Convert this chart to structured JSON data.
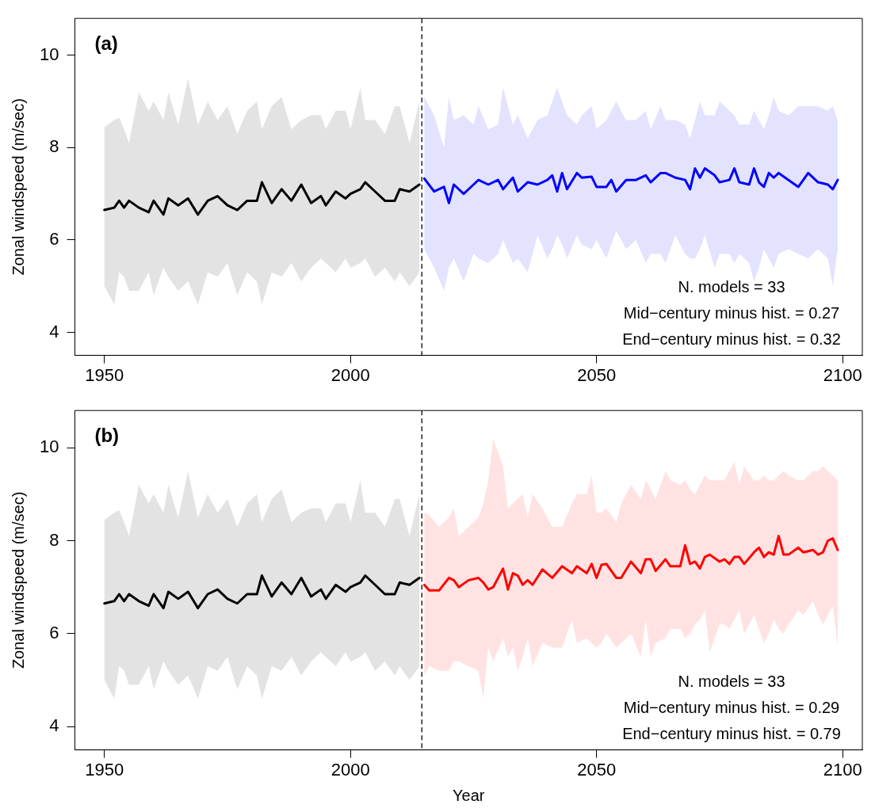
{
  "chart_data": [
    {
      "type": "line",
      "title": "(a)",
      "ylabel": "Zonal windspeed (m/sec)",
      "xlim": [
        1944,
        2104
      ],
      "ylim": [
        3.5,
        10.8
      ],
      "xticks": [
        1950,
        2000,
        2050,
        2100
      ],
      "yticks": [
        4,
        6,
        8,
        10
      ],
      "grid": false,
      "legend": false,
      "marker": "none",
      "line_style": "solid",
      "ref_lines": [
        {
          "axis": "x",
          "value": 2014.5,
          "color": "#000000",
          "line_style": "dashed"
        }
      ],
      "annotations": [
        "N. models = 33",
        "Mid−century minus hist. = 0.27",
        "End−century minus hist. = 0.32"
      ],
      "series": [
        {
          "color": "#000000",
          "x": [
            1950,
            1952,
            1953,
            1954,
            1955,
            1957,
            1959,
            1960,
            1962,
            1963,
            1965,
            1967,
            1969,
            1971,
            1973,
            1975,
            1977,
            1979,
            1981,
            1982,
            1984,
            1986,
            1988,
            1990,
            1992,
            1994,
            1995,
            1997,
            1999,
            2000,
            2002,
            2003,
            2005,
            2007,
            2009,
            2010,
            2012,
            2014
          ],
          "values": [
            6.65,
            6.7,
            6.85,
            6.7,
            6.85,
            6.7,
            6.6,
            6.85,
            6.55,
            6.9,
            6.75,
            6.9,
            6.55,
            6.85,
            6.95,
            6.75,
            6.65,
            6.85,
            6.85,
            7.25,
            6.8,
            7.1,
            6.85,
            7.2,
            6.8,
            6.95,
            6.75,
            7.05,
            6.9,
            7.0,
            7.1,
            7.25,
            7.05,
            6.85,
            6.85,
            7.1,
            7.05,
            7.2
          ],
          "upper": [
            8.45,
            8.6,
            8.65,
            8.4,
            8.1,
            9.2,
            8.8,
            9.0,
            8.6,
            9.2,
            8.5,
            9.5,
            8.5,
            9.0,
            8.6,
            8.9,
            8.3,
            8.8,
            9.0,
            8.4,
            8.9,
            9.1,
            8.4,
            8.6,
            8.7,
            8.7,
            8.4,
            8.8,
            8.8,
            8.4,
            9.3,
            8.6,
            8.6,
            8.3,
            8.9,
            8.9,
            8.1,
            9.0
          ],
          "lower": [
            5.0,
            4.6,
            5.3,
            5.2,
            4.9,
            4.9,
            5.3,
            4.8,
            5.4,
            5.2,
            4.9,
            5.1,
            4.6,
            5.3,
            5.2,
            5.5,
            4.8,
            5.3,
            5.1,
            4.6,
            5.3,
            5.2,
            5.5,
            5.1,
            5.4,
            5.6,
            5.5,
            5.3,
            5.6,
            5.4,
            5.5,
            5.6,
            5.2,
            5.4,
            5.1,
            5.3,
            5.0,
            5.3
          ]
        },
        {
          "color": "#0000ff",
          "x": [
            2015,
            2017,
            2019,
            2020,
            2021,
            2023,
            2025,
            2026,
            2028,
            2030,
            2031,
            2033,
            2034,
            2036,
            2038,
            2040,
            2041,
            2042,
            2043,
            2044,
            2046,
            2047,
            2049,
            2050,
            2052,
            2053,
            2054,
            2056,
            2058,
            2060,
            2061,
            2063,
            2064,
            2066,
            2068,
            2069,
            2070,
            2071,
            2072,
            2074,
            2075,
            2077,
            2078,
            2079,
            2081,
            2082,
            2083,
            2084,
            2085,
            2086,
            2087,
            2089,
            2091,
            2093,
            2095,
            2097,
            2098,
            2099
          ],
          "values": [
            7.33,
            7.05,
            7.15,
            6.8,
            7.2,
            7.0,
            7.2,
            7.3,
            7.2,
            7.3,
            7.1,
            7.35,
            7.05,
            7.25,
            7.2,
            7.3,
            7.4,
            7.05,
            7.45,
            7.1,
            7.45,
            7.35,
            7.37,
            7.15,
            7.15,
            7.3,
            7.05,
            7.3,
            7.3,
            7.4,
            7.25,
            7.45,
            7.45,
            7.35,
            7.3,
            7.1,
            7.55,
            7.35,
            7.55,
            7.4,
            7.25,
            7.3,
            7.55,
            7.25,
            7.2,
            7.55,
            7.25,
            7.15,
            7.45,
            7.35,
            7.45,
            7.3,
            7.15,
            7.45,
            7.25,
            7.2,
            7.1,
            7.3
          ],
          "upper": [
            9.1,
            8.7,
            8.0,
            9.1,
            8.6,
            8.7,
            8.5,
            8.9,
            8.4,
            8.5,
            9.3,
            8.5,
            8.7,
            8.2,
            8.6,
            8.7,
            9.0,
            9.3,
            9.0,
            8.7,
            8.5,
            8.7,
            8.9,
            8.4,
            8.6,
            8.8,
            9.0,
            8.6,
            8.6,
            8.8,
            8.4,
            8.9,
            8.6,
            8.6,
            8.5,
            8.2,
            8.6,
            9.0,
            8.7,
            8.7,
            9.0,
            8.8,
            8.7,
            8.5,
            8.5,
            8.8,
            8.6,
            8.4,
            8.7,
            9.1,
            8.8,
            8.7,
            8.9,
            8.9,
            8.9,
            8.8,
            8.9,
            8.6
          ],
          "lower": [
            5.8,
            5.4,
            4.9,
            5.4,
            5.6,
            5.1,
            5.7,
            5.6,
            5.5,
            5.7,
            6.0,
            5.5,
            5.6,
            5.3,
            6.1,
            5.6,
            5.8,
            6.1,
            5.9,
            5.6,
            6.1,
            5.9,
            5.8,
            6.0,
            5.6,
            5.9,
            6.2,
            5.8,
            6.0,
            5.5,
            5.7,
            5.7,
            5.5,
            6.1,
            5.7,
            5.6,
            5.6,
            5.8,
            6.1,
            5.4,
            5.7,
            5.7,
            5.5,
            5.7,
            5.5,
            5.1,
            5.4,
            5.8,
            5.6,
            5.4,
            5.7,
            5.8,
            5.7,
            5.6,
            5.8,
            5.6,
            5.0,
            5.8
          ]
        }
      ]
    },
    {
      "type": "line",
      "title": "(b)",
      "xlabel": "Year",
      "ylabel": "Zonal windspeed (m/sec)",
      "xlim": [
        1944,
        2104
      ],
      "ylim": [
        3.5,
        10.8
      ],
      "xticks": [
        1950,
        2000,
        2050,
        2100
      ],
      "yticks": [
        4,
        6,
        8,
        10
      ],
      "grid": false,
      "legend": false,
      "marker": "none",
      "line_style": "solid",
      "ref_lines": [
        {
          "axis": "x",
          "value": 2014.5,
          "color": "#000000",
          "line_style": "dashed"
        }
      ],
      "annotations": [
        "N. models = 33",
        "Mid−century minus hist. = 0.29",
        "End−century minus hist. = 0.79"
      ],
      "series": [
        {
          "color": "#000000",
          "x": [
            1950,
            1952,
            1953,
            1954,
            1955,
            1957,
            1959,
            1960,
            1962,
            1963,
            1965,
            1967,
            1969,
            1971,
            1973,
            1975,
            1977,
            1979,
            1981,
            1982,
            1984,
            1986,
            1988,
            1990,
            1992,
            1994,
            1995,
            1997,
            1999,
            2000,
            2002,
            2003,
            2005,
            2007,
            2009,
            2010,
            2012,
            2014
          ],
          "values": [
            6.65,
            6.7,
            6.85,
            6.7,
            6.85,
            6.7,
            6.6,
            6.85,
            6.55,
            6.9,
            6.75,
            6.9,
            6.55,
            6.85,
            6.95,
            6.75,
            6.65,
            6.85,
            6.85,
            7.25,
            6.8,
            7.1,
            6.85,
            7.2,
            6.8,
            6.95,
            6.75,
            7.05,
            6.9,
            7.0,
            7.1,
            7.25,
            7.05,
            6.85,
            6.85,
            7.1,
            7.05,
            7.2
          ],
          "upper": [
            8.45,
            8.6,
            8.65,
            8.4,
            8.1,
            9.2,
            8.8,
            9.0,
            8.6,
            9.2,
            8.5,
            9.5,
            8.5,
            9.0,
            8.6,
            8.9,
            8.3,
            8.8,
            9.0,
            8.4,
            8.9,
            9.1,
            8.4,
            8.6,
            8.7,
            8.7,
            8.4,
            8.8,
            8.8,
            8.4,
            9.3,
            8.6,
            8.6,
            8.3,
            8.9,
            8.9,
            8.1,
            9.0
          ],
          "lower": [
            5.0,
            4.6,
            5.3,
            5.2,
            4.9,
            4.9,
            5.3,
            4.8,
            5.4,
            5.2,
            4.9,
            5.1,
            4.6,
            5.3,
            5.2,
            5.5,
            4.8,
            5.3,
            5.1,
            4.6,
            5.3,
            5.2,
            5.5,
            5.1,
            5.4,
            5.6,
            5.5,
            5.3,
            5.6,
            5.4,
            5.5,
            5.6,
            5.2,
            5.4,
            5.1,
            5.3,
            5.0,
            5.3
          ]
        },
        {
          "color": "#ff0000",
          "x": [
            2015,
            2016,
            2018,
            2020,
            2021,
            2022,
            2024,
            2026,
            2027,
            2028,
            2029,
            2031,
            2032,
            2033,
            2034,
            2035,
            2036,
            2037,
            2039,
            2041,
            2043,
            2045,
            2046,
            2048,
            2049,
            2050,
            2051,
            2052,
            2054,
            2055,
            2057,
            2059,
            2060,
            2061,
            2062,
            2064,
            2065,
            2067,
            2068,
            2069,
            2070,
            2071,
            2072,
            2073,
            2075,
            2076,
            2077,
            2078,
            2079,
            2080,
            2082,
            2083,
            2084,
            2085,
            2086,
            2087,
            2088,
            2089,
            2091,
            2092,
            2094,
            2095,
            2096,
            2097,
            2098,
            2099
          ],
          "values": [
            7.05,
            6.93,
            6.93,
            7.2,
            7.15,
            7.0,
            7.15,
            7.2,
            7.1,
            6.95,
            7.0,
            7.4,
            6.95,
            7.3,
            7.25,
            7.05,
            7.15,
            7.05,
            7.38,
            7.2,
            7.45,
            7.3,
            7.45,
            7.3,
            7.5,
            7.2,
            7.48,
            7.5,
            7.2,
            7.2,
            7.55,
            7.3,
            7.6,
            7.6,
            7.35,
            7.6,
            7.45,
            7.45,
            7.9,
            7.5,
            7.55,
            7.4,
            7.65,
            7.7,
            7.55,
            7.6,
            7.5,
            7.65,
            7.65,
            7.5,
            7.75,
            7.85,
            7.65,
            7.75,
            7.7,
            8.1,
            7.7,
            7.7,
            7.85,
            7.75,
            7.8,
            7.7,
            7.75,
            8.0,
            8.05,
            7.8
          ],
          "upper": [
            8.6,
            8.55,
            8.3,
            8.5,
            8.7,
            8.1,
            8.3,
            8.5,
            8.8,
            9.3,
            10.2,
            9.6,
            8.7,
            8.8,
            8.9,
            9.0,
            8.5,
            9.0,
            8.7,
            8.3,
            8.3,
            8.8,
            9.0,
            9.0,
            9.4,
            8.6,
            8.6,
            8.7,
            8.4,
            8.8,
            9.2,
            8.9,
            9.3,
            9.1,
            8.9,
            9.5,
            9.3,
            9.2,
            9.3,
            9.1,
            9.0,
            9.2,
            9.4,
            9.3,
            9.3,
            9.3,
            9.5,
            9.7,
            9.2,
            9.6,
            9.3,
            9.3,
            9.4,
            9.3,
            9.3,
            9.4,
            9.5,
            9.4,
            9.3,
            9.3,
            9.5,
            9.5,
            9.6,
            9.5,
            9.4,
            9.3
          ],
          "lower": [
            5.1,
            5.3,
            5.2,
            5.2,
            5.4,
            5.4,
            5.3,
            5.2,
            4.6,
            5.7,
            5.4,
            5.9,
            5.5,
            5.7,
            5.2,
            5.5,
            5.9,
            5.3,
            5.8,
            5.7,
            5.7,
            6.3,
            5.8,
            5.9,
            5.8,
            5.7,
            5.8,
            6.0,
            5.7,
            5.8,
            6.0,
            5.5,
            6.3,
            5.5,
            5.8,
            5.9,
            6.1,
            6.1,
            5.9,
            6.0,
            6.2,
            6.3,
            6.5,
            5.6,
            6.2,
            6.2,
            6.1,
            6.3,
            6.5,
            6.0,
            6.4,
            6.1,
            5.8,
            6.0,
            6.3,
            6.1,
            6.0,
            6.2,
            6.5,
            6.4,
            6.7,
            6.4,
            6.2,
            6.4,
            6.6,
            5.7
          ]
        }
      ]
    }
  ]
}
